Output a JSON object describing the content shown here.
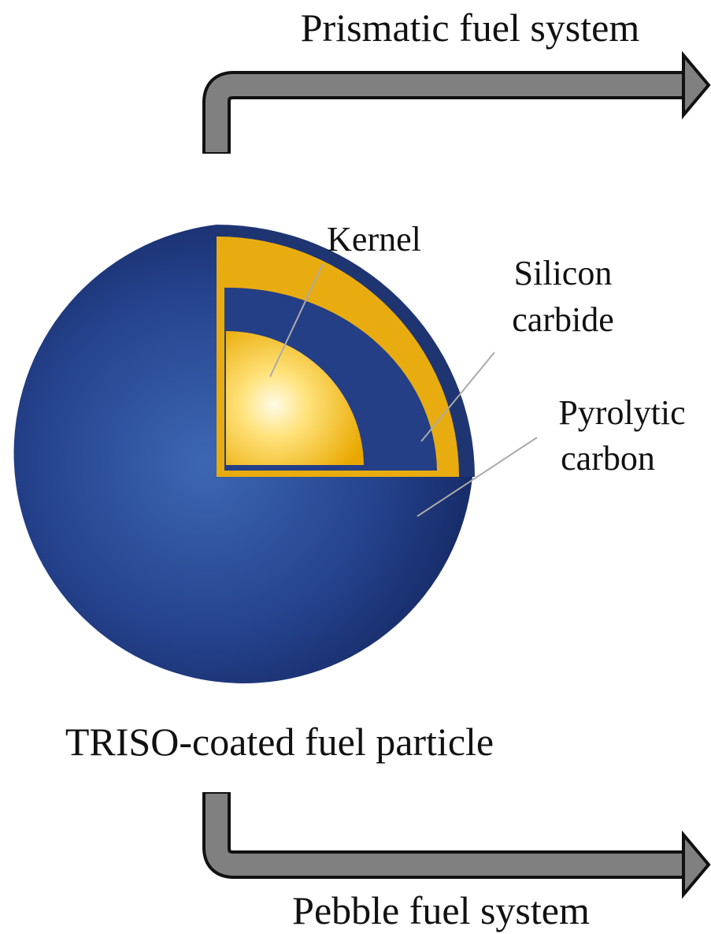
{
  "top_label": "Prismatic fuel system",
  "bottom_label": "Pebble fuel system",
  "caption": "TRISO-coated fuel particle",
  "layers": [
    {
      "lines": [
        "Kernel"
      ]
    },
    {
      "lines": [
        "Silicon",
        "carbide"
      ]
    },
    {
      "lines": [
        "Pyrolytic",
        "carbon"
      ]
    }
  ]
}
